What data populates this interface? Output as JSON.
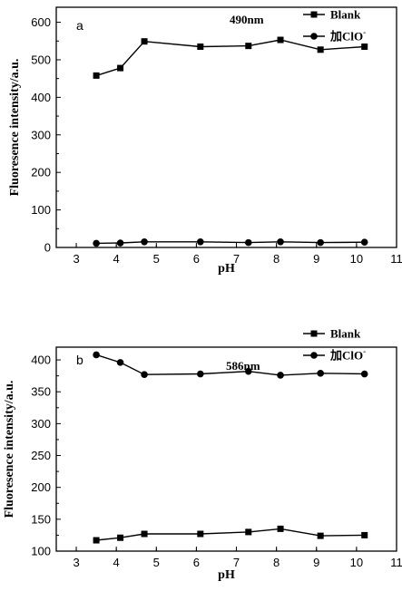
{
  "chart_data": [
    {
      "type": "line",
      "panel_label": "a",
      "annotation": "490nm",
      "xlabel": "pH",
      "ylabel": "Fluoresence intensity/a.u.",
      "xlim": [
        2.5,
        11
      ],
      "ylim": [
        0,
        640
      ],
      "x_ticks": [
        3,
        4,
        5,
        6,
        7,
        8,
        9,
        10,
        11
      ],
      "y_ticks": [
        0,
        100,
        200,
        300,
        400,
        500,
        600
      ],
      "legend_position": "top-right",
      "series": [
        {
          "name": "Blank",
          "marker": "square",
          "x": [
            3.5,
            4.1,
            4.7,
            6.1,
            7.3,
            8.1,
            9.1,
            10.2
          ],
          "y": [
            458,
            478,
            549,
            535,
            537,
            553,
            527,
            535
          ]
        },
        {
          "name": "加ClO",
          "name_superscript": "-",
          "marker": "circle",
          "x": [
            3.5,
            4.1,
            4.7,
            6.1,
            7.3,
            8.1,
            9.1,
            10.2
          ],
          "y": [
            11,
            12,
            15,
            15,
            13,
            15,
            13,
            14
          ]
        }
      ]
    },
    {
      "type": "line",
      "panel_label": "b",
      "annotation": "586nm",
      "xlabel": "pH",
      "ylabel": "Fluoresence intensity/a.u.",
      "xlim": [
        2.5,
        11
      ],
      "ylim": [
        100,
        420
      ],
      "x_ticks": [
        3,
        4,
        5,
        6,
        7,
        8,
        9,
        10,
        11
      ],
      "y_ticks": [
        100,
        150,
        200,
        250,
        300,
        350,
        400
      ],
      "legend_position": "top-right",
      "series": [
        {
          "name": "Blank",
          "marker": "square",
          "x": [
            3.5,
            4.1,
            4.7,
            6.1,
            7.3,
            8.1,
            9.1,
            10.2
          ],
          "y": [
            117,
            121,
            127,
            127,
            130,
            135,
            124,
            125
          ]
        },
        {
          "name": "加ClO",
          "name_superscript": "-",
          "marker": "circle",
          "x": [
            3.5,
            4.1,
            4.7,
            6.1,
            7.3,
            8.1,
            9.1,
            10.2
          ],
          "y": [
            408,
            396,
            377,
            378,
            382,
            376,
            379,
            378
          ]
        }
      ]
    }
  ]
}
